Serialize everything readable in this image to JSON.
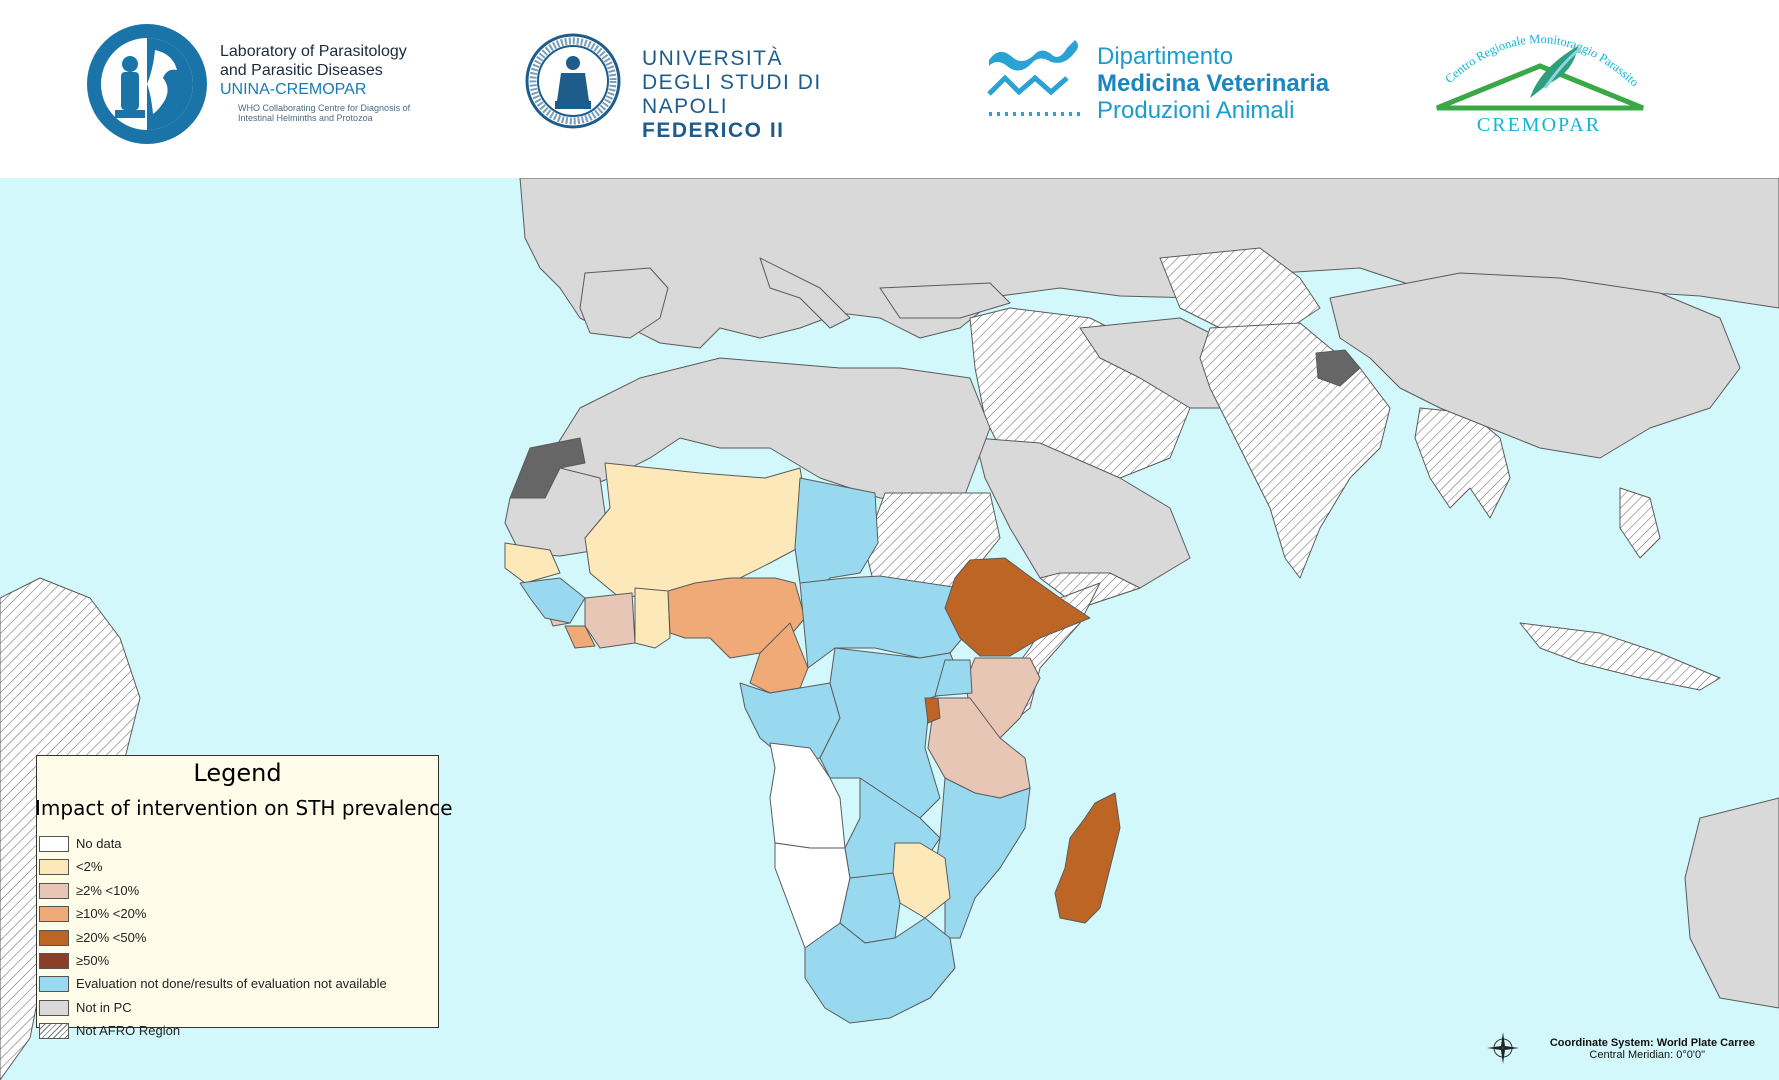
{
  "header": {
    "logo_lab": {
      "line1": "Laboratory of Parasitology",
      "line2": "and Parasitic Diseases",
      "line3": "UNINA-CREMOPAR",
      "line4": "WHO Collaborating Centre for Diagnosis of",
      "line5": "Intestinal Helminths and Protozoa"
    },
    "logo_uni": {
      "line1": "UNIVERSITÀ",
      "line2": "DEGLI STUDI DI NAPOLI",
      "line3": "FEDERICO II"
    },
    "logo_dept": {
      "line1": "Dipartimento",
      "line2": "Medicina Veterinaria",
      "line3": "Produzioni Animali"
    },
    "logo_cremopar": {
      "arc_text": "Centro Regionale Monitoraggio Parassitosi",
      "name": "CREMOPAR"
    }
  },
  "legend": {
    "title": "Legend",
    "subtitle": "Impact of intervention on STH prevalence",
    "items": [
      {
        "label": "No data",
        "color": "#ffffff",
        "hatched": false
      },
      {
        "label": "<2%",
        "color": "#fde8b9",
        "hatched": false
      },
      {
        "label": "≥2% <10%",
        "color": "#e8c6b6",
        "hatched": false
      },
      {
        "label": "≥10% <20%",
        "color": "#efaa77",
        "hatched": false
      },
      {
        "label": "≥20% <50%",
        "color": "#bd6524",
        "hatched": false
      },
      {
        "label": "≥50%",
        "color": "#8c3f27",
        "hatched": false
      },
      {
        "label": "Evaluation not done/results of evaluation not available",
        "color": "#99d9f0",
        "hatched": false
      },
      {
        "label": "Not in PC",
        "color": "#d9d9d9",
        "hatched": false
      },
      {
        "label": "Not AFRO Region",
        "color": "#ffffff",
        "hatched": true
      }
    ]
  },
  "colors": {
    "ocean": "#d3f8fb",
    "land_not_in_pc": "#d9d9d9",
    "disputed": "#666666",
    "border": "#5a5a5a"
  },
  "coordinate_system": {
    "line1": "Coordinate System: World Plate Carree",
    "line2": "Central Meridian: 0°0'0\""
  }
}
